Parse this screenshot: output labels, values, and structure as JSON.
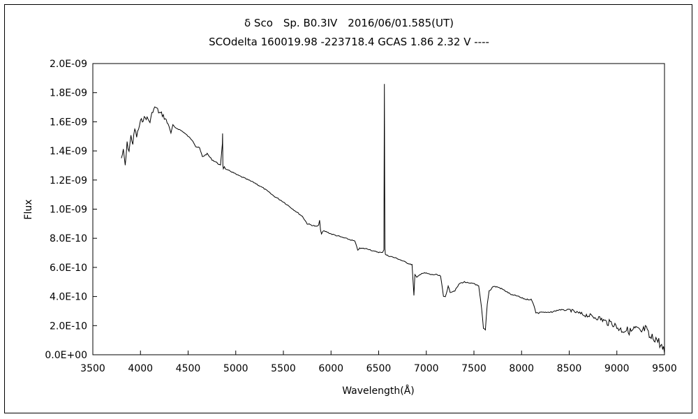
{
  "chart_data": {
    "type": "line",
    "title": "δ Sco　Sp. B0.3IV　2016/06/01.585(UT)",
    "subtitle": "SCOdelta 160019.98 -223718.4 GCAS 1.86 2.32 V ----",
    "xlabel": "Wavelength(Å)",
    "ylabel": "Flux",
    "xlim": [
      3500,
      9500
    ],
    "ylim": [
      0,
      2e-09
    ],
    "x_ticks": [
      "3500",
      "4000",
      "4500",
      "5000",
      "5500",
      "6000",
      "6500",
      "7000",
      "7500",
      "8000",
      "8500",
      "9000",
      "9500"
    ],
    "y_ticks": [
      "0.0E+00",
      "2.0E-10",
      "4.0E-10",
      "6.0E-10",
      "8.0E-10",
      "1.0E-09",
      "1.2E-09",
      "1.4E-09",
      "1.6E-09",
      "1.8E-09",
      "2.0E-09"
    ],
    "grid": false,
    "legend": "none",
    "series": [
      {
        "color": "#000000",
        "x": [
          3800,
          3820,
          3840,
          3860,
          3880,
          3900,
          3920,
          3940,
          3960,
          3980,
          4000,
          4030,
          4060,
          4100,
          4130,
          4160,
          4180,
          4200,
          4230,
          4260,
          4300,
          4320,
          4340,
          4360,
          4400,
          4450,
          4500,
          4550,
          4580,
          4620,
          4650,
          4700,
          4750,
          4800,
          4840,
          4860,
          4862,
          4865,
          4870,
          4880,
          4900,
          4950,
          5000,
          5100,
          5200,
          5300,
          5400,
          5500,
          5600,
          5700,
          5750,
          5800,
          5850,
          5870,
          5880,
          5890,
          5900,
          5920,
          5950,
          6000,
          6100,
          6200,
          6250,
          6280,
          6300,
          6350,
          6400,
          6450,
          6500,
          6540,
          6555,
          6560,
          6563,
          6566,
          6570,
          6580,
          6600,
          6700,
          6800,
          6850,
          6870,
          6880,
          6900,
          6950,
          7000,
          7050,
          7100,
          7150,
          7180,
          7200,
          7230,
          7250,
          7300,
          7350,
          7400,
          7450,
          7500,
          7550,
          7580,
          7600,
          7620,
          7640,
          7660,
          7680,
          7700,
          7750,
          7800,
          7850,
          7900,
          7950,
          8000,
          8050,
          8100,
          8130,
          8150,
          8180,
          8200,
          8250,
          8300,
          8350,
          8400,
          8450,
          8500,
          8550,
          8600,
          8650,
          8700,
          8750,
          8800,
          8850,
          8900,
          8950,
          9000,
          9050,
          9100,
          9150,
          9200,
          9250,
          9300,
          9350,
          9400,
          9450,
          9500
        ],
        "y": [
          1.35e-09,
          1.4e-09,
          1.3e-09,
          1.45e-09,
          1.4e-09,
          1.5e-09,
          1.45e-09,
          1.55e-09,
          1.5e-09,
          1.55e-09,
          1.6e-09,
          1.62e-09,
          1.63e-09,
          1.6e-09,
          1.68e-09,
          1.7e-09,
          1.68e-09,
          1.66e-09,
          1.65e-09,
          1.62e-09,
          1.57e-09,
          1.52e-09,
          1.58e-09,
          1.56e-09,
          1.55e-09,
          1.53e-09,
          1.5e-09,
          1.47e-09,
          1.43e-09,
          1.42e-09,
          1.36e-09,
          1.38e-09,
          1.34e-09,
          1.32e-09,
          1.3e-09,
          1.45e-09,
          1.52e-09,
          1.3e-09,
          1.28e-09,
          1.29e-09,
          1.27e-09,
          1.26e-09,
          1.24e-09,
          1.21e-09,
          1.18e-09,
          1.14e-09,
          1.09e-09,
          1.05e-09,
          1e-09,
          9.5e-10,
          9e-10,
          8.9e-10,
          8.8e-10,
          8.9e-10,
          9.2e-10,
          8.6e-10,
          8.3e-10,
          8.5e-10,
          8.45e-10,
          8.3e-10,
          8.1e-10,
          7.9e-10,
          7.8e-10,
          7.2e-10,
          7.3e-10,
          7.3e-10,
          7.25e-10,
          7.1e-10,
          7.05e-10,
          7e-10,
          7.2e-10,
          1.86e-09,
          1.2e-09,
          7.3e-10,
          6.9e-10,
          6.85e-10,
          6.8e-10,
          6.6e-10,
          6.3e-10,
          6.2e-10,
          4.1e-10,
          5.5e-10,
          5.3e-10,
          5.6e-10,
          5.6e-10,
          5.5e-10,
          5.5e-10,
          5.4e-10,
          4e-10,
          4e-10,
          4.7e-10,
          4.3e-10,
          4.4e-10,
          4.9e-10,
          5e-10,
          4.9e-10,
          4.9e-10,
          4.7e-10,
          3.2e-10,
          1.8e-10,
          1.7e-10,
          3.5e-10,
          4.4e-10,
          4.5e-10,
          4.7e-10,
          4.65e-10,
          4.5e-10,
          4.3e-10,
          4.1e-10,
          4.05e-10,
          3.9e-10,
          3.8e-10,
          3.8e-10,
          3.4e-10,
          2.9e-10,
          2.85e-10,
          2.95e-10,
          2.9e-10,
          2.9e-10,
          3e-10,
          3.1e-10,
          3.05e-10,
          3.1e-10,
          2.95e-10,
          2.85e-10,
          2.75e-10,
          2.7e-10,
          2.6e-10,
          2.55e-10,
          2.4e-10,
          2.2e-10,
          2.2e-10,
          1.9e-10,
          1.7e-10,
          1.7e-10,
          1.6e-10,
          1.8e-10,
          1.5e-10,
          1.8e-10,
          1.1e-10,
          1.2e-10,
          8e-11,
          1e-11
        ]
      }
    ]
  }
}
